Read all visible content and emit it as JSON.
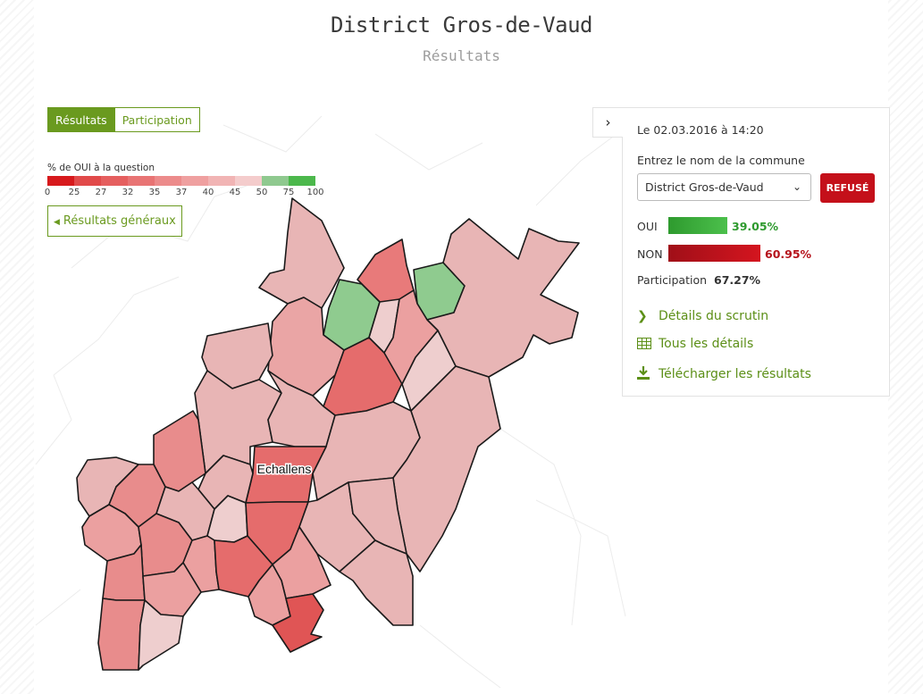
{
  "header": {
    "title": "District Gros-de-Vaud",
    "subtitle": "Résultats"
  },
  "tabs": [
    {
      "label": "Résultats",
      "active": true
    },
    {
      "label": "Participation",
      "active": false
    }
  ],
  "legend": {
    "title": "% de OUI à la question",
    "ticks": [
      "0",
      "25",
      "27",
      "32",
      "35",
      "37",
      "40",
      "45",
      "50",
      "75",
      "100"
    ],
    "colors": [
      "#d7191c",
      "#e14a4a",
      "#e55f5f",
      "#e87474",
      "#ec8b8b",
      "#efa0a0",
      "#f1b4b4",
      "#f4cccc",
      "#8fc98f",
      "#4cb84c"
    ]
  },
  "back_button": {
    "label": "Résultats généraux"
  },
  "map": {
    "place_label": "Echallens"
  },
  "panel": {
    "date": "Le 02.03.2016 à 14:20",
    "input_label": "Entrez le nom de la commune",
    "select_value": "District Gros-de-Vaud",
    "verdict": "REFUSÉ",
    "oui": {
      "label": "OUI",
      "pct": "39.05%",
      "value": 39.05,
      "color": "#2e9a2e"
    },
    "non": {
      "label": "NON",
      "pct": "60.95%",
      "value": 60.95,
      "color": "#b5121b"
    },
    "participation": {
      "label": "Participation",
      "value": "67.27%"
    },
    "links": [
      "Détails du scrutin",
      "Tous les détails",
      "Télécharger les résultats"
    ]
  }
}
